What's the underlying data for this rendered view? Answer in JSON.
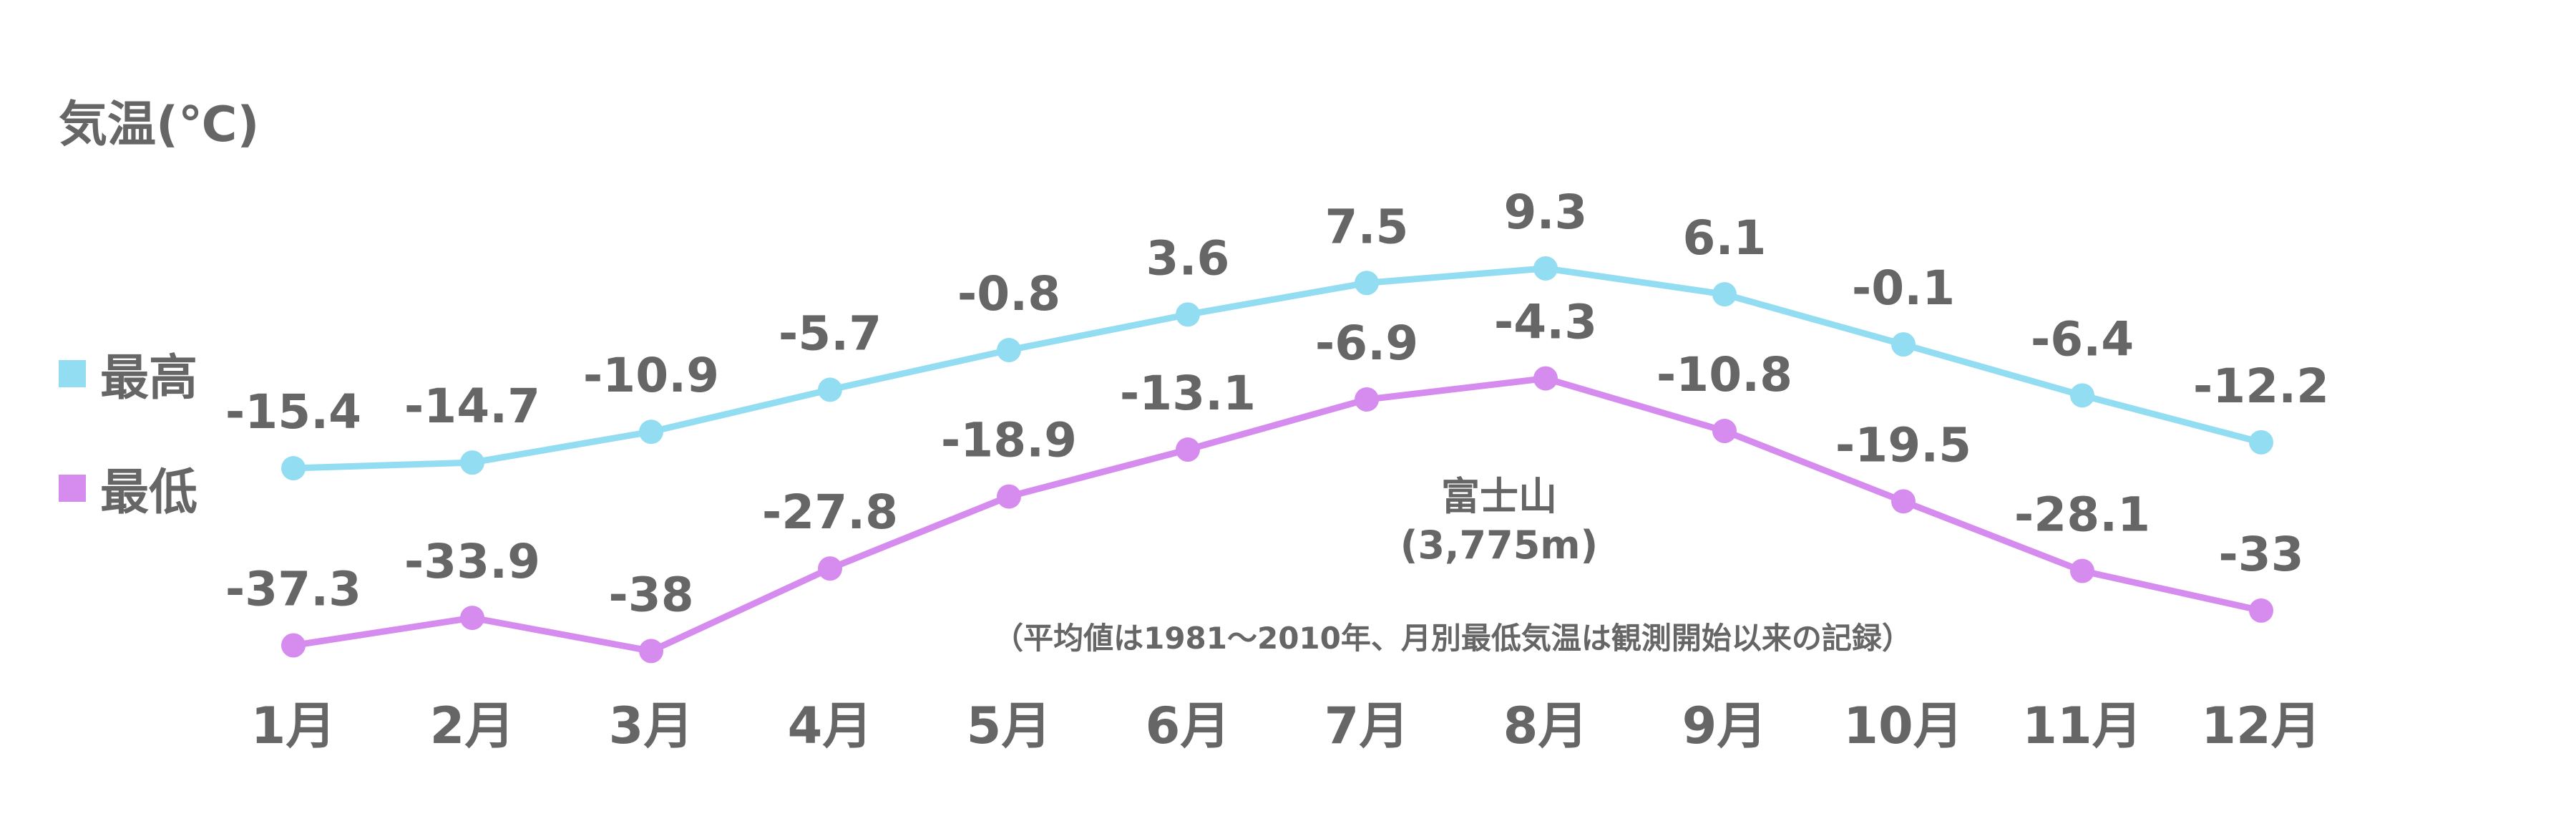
{
  "colors": {
    "high": "#93ddf2",
    "low": "#d68cef",
    "text": "#666666"
  },
  "y_axis_label": "気温(℃)",
  "legend": [
    {
      "label": "最高",
      "color": "#93ddf2"
    },
    {
      "label": "最低",
      "color": "#d68cef"
    }
  ],
  "station": {
    "name": "富士山",
    "elevation": "(3,775m)"
  },
  "note": "（平均値は1981〜2010年、月別最低気温は観測開始以来の記録）",
  "chart_data": {
    "type": "line",
    "categories": [
      "1月",
      "2月",
      "3月",
      "4月",
      "5月",
      "6月",
      "7月",
      "8月",
      "9月",
      "10月",
      "11月",
      "12月"
    ],
    "series": [
      {
        "name": "最高",
        "values": [
          -15.4,
          -14.7,
          -10.9,
          -5.7,
          -0.8,
          3.6,
          7.5,
          9.3,
          6.1,
          -0.1,
          -6.4,
          -12.2
        ]
      },
      {
        "name": "最低",
        "values": [
          -37.3,
          -33.9,
          -38,
          -27.8,
          -18.9,
          -13.1,
          -6.9,
          -4.3,
          -10.8,
          -19.5,
          -28.1,
          -33
        ]
      }
    ],
    "data_labels": {
      "最高": [
        "-15.4",
        "-14.7",
        "-10.9",
        "-5.7",
        "-0.8",
        "3.6",
        "7.5",
        "9.3",
        "6.1",
        "-0.1",
        "-6.4",
        "-12.2"
      ],
      "最低": [
        "-37.3",
        "-33.9",
        "-38",
        "-27.8",
        "-18.9",
        "-13.1",
        "-6.9",
        "-4.3",
        "-10.8",
        "-19.5",
        "-28.1",
        "-33"
      ]
    },
    "ylabel": "気温(℃)",
    "grid": false,
    "legend_position": "left"
  }
}
